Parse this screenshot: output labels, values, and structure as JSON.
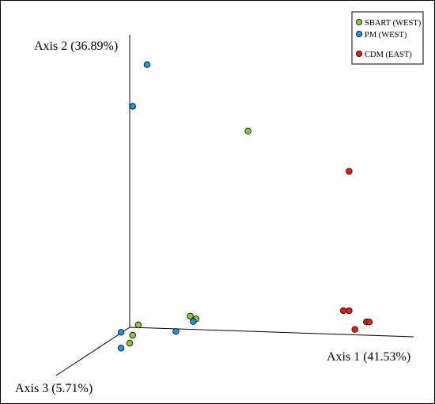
{
  "chart_data": {
    "type": "scatter",
    "projection": "3d",
    "axes": {
      "x": {
        "label": "Axis 1 (41.53%)"
      },
      "y": {
        "label": "Axis 2 (36.89%)"
      },
      "z": {
        "label": "Axis 3 (5.71%)"
      }
    },
    "grid": false,
    "legend_position": "top-right",
    "series": [
      {
        "name": "SBART (WEST)",
        "color": "#8cc63f",
        "points": [
          {
            "x": 0.41,
            "y": 0.76
          },
          {
            "x": 0.21,
            "y": 0.05
          },
          {
            "x": 0.23,
            "y": 0.04
          },
          {
            "x": 0.03,
            "y": 0.01
          },
          {
            "x": 0.01,
            "y": -0.03
          },
          {
            "x": 0.0,
            "y": -0.06
          }
        ]
      },
      {
        "name": "PM (WEST)",
        "color": "#1f95d6",
        "points": [
          {
            "x": 0.06,
            "y": 1.0
          },
          {
            "x": 0.01,
            "y": 0.84
          },
          {
            "x": 0.22,
            "y": 0.03
          },
          {
            "x": 0.16,
            "y": -0.01
          },
          {
            "x": -0.03,
            "y": -0.02
          },
          {
            "x": -0.03,
            "y": -0.08
          }
        ]
      },
      {
        "name": "CDM (EAST)",
        "color": "#e0201b",
        "points": [
          {
            "x": 0.76,
            "y": 0.62
          },
          {
            "x": 0.74,
            "y": 0.09
          },
          {
            "x": 0.76,
            "y": 0.09
          },
          {
            "x": 0.82,
            "y": 0.05
          },
          {
            "x": 0.83,
            "y": 0.05
          },
          {
            "x": 0.78,
            "y": 0.02
          }
        ]
      }
    ]
  }
}
